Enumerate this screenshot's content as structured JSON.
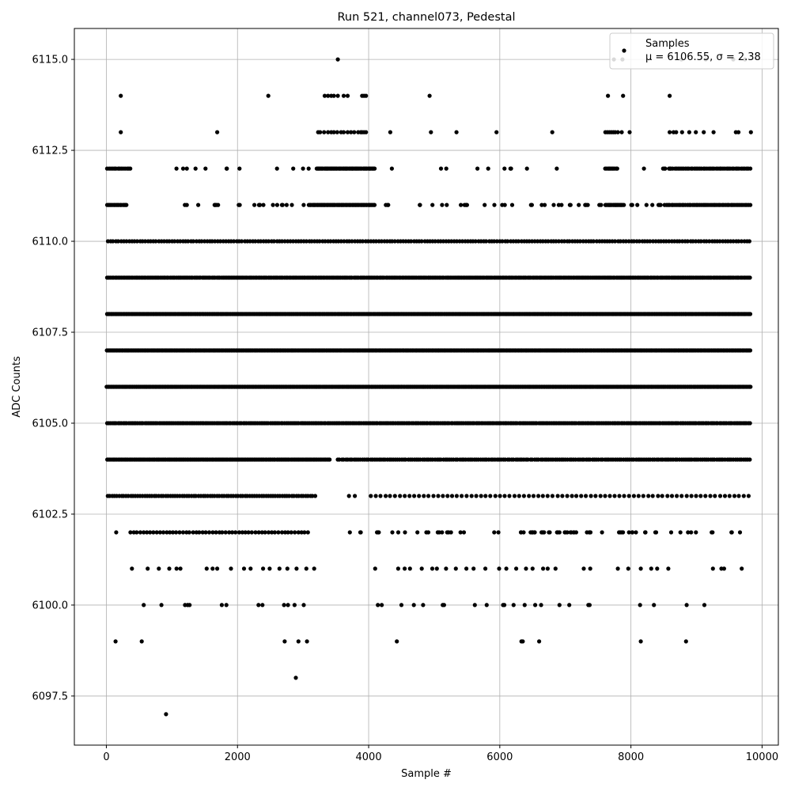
{
  "chart_data": {
    "type": "scatter",
    "title": "Run 521, channel073, Pedestal",
    "xlabel": "Sample #",
    "ylabel": "ADC Counts",
    "xlim": [
      -488,
      10248
    ],
    "ylim": [
      6096.15,
      6115.85
    ],
    "x_ticks": [
      0,
      2000,
      4000,
      6000,
      8000,
      10000
    ],
    "x_tick_labels": [
      "0",
      "2000",
      "4000",
      "6000",
      "8000",
      "10000"
    ],
    "y_ticks": [
      6097.5,
      6100.0,
      6102.5,
      6105.0,
      6107.5,
      6110.0,
      6112.5,
      6115.0
    ],
    "y_tick_labels": [
      "6097.5",
      "6100.0",
      "6102.5",
      "6105.0",
      "6107.5",
      "6110.0",
      "6112.5",
      "6115.0"
    ],
    "grid": true,
    "legend_position": "top-right",
    "marker_color": "#000000",
    "series": [
      {
        "name": "Samples",
        "stats_label": "μ = 6106.55, σ = 2.38",
        "n_samples": 9840,
        "levels": [
          {
            "y": 6097,
            "x": [
              910
            ]
          },
          {
            "y": 6098,
            "x": [
              2890
            ]
          },
          {
            "y": 6099,
            "x": [
              140,
              540,
              2720,
              2930,
              3060,
              4430,
              6330,
              6350,
              6600,
              8150,
              8840
            ]
          },
          {
            "y": 6100,
            "x": [
              570,
              840,
              1200,
              1240,
              1270,
              1760,
              1830,
              2320,
              2380,
              2710,
              2770,
              2870,
              3010,
              4140,
              4200,
              4500,
              4690,
              4830,
              5130,
              5150,
              5620,
              5800,
              6050,
              6070,
              6210,
              6380,
              6540,
              6630,
              6910,
              7060,
              7350,
              7370,
              8140,
              8350,
              8850,
              9120
            ]
          },
          {
            "y": 6101,
            "x": [
              390,
              630,
              800,
              960,
              1070,
              1130,
              1530,
              1620,
              1690,
              1900,
              2100,
              2200,
              2390,
              2490,
              2640,
              2760,
              2900,
              3050,
              3170,
              4100,
              4450,
              4550,
              4630,
              4810,
              4970,
              5040,
              5180,
              5330,
              5490,
              5600,
              5780,
              5990,
              6100,
              6250,
              6400,
              6500,
              6660,
              6730,
              6850,
              7280,
              7380,
              7800,
              7960,
              8150,
              8310,
              8400,
              8570,
              9250,
              9380,
              9420,
              9690
            ]
          },
          {
            "y": 6102,
            "x": [
              150
            ],
            "dense": [
              [
                340,
                3100,
                55
              ]
            ],
            "sparse": [
              [
                3600,
                6300,
                22
              ],
              [
                6300,
                7400,
                30
              ],
              [
                7400,
                9800,
                24
              ]
            ]
          },
          {
            "y": 6103,
            "x": [
              3700,
              3790
            ],
            "dense": [
              [
                0,
                3200,
                90
              ],
              [
                4000,
                9830,
                80
              ]
            ]
          },
          {
            "y": 6104,
            "dense": [
              [
                0,
                3420,
                160
              ],
              [
                3510,
                9830,
                200
              ]
            ]
          },
          {
            "y": 6105,
            "dense": [
              [
                0,
                9830,
                360
              ]
            ]
          },
          {
            "y": 6106,
            "dense": [
              [
                0,
                9830,
                640
              ]
            ]
          },
          {
            "y": 6107,
            "dense": [
              [
                0,
                9830,
                700
              ]
            ]
          },
          {
            "y": 6108,
            "dense": [
              [
                0,
                9830,
                650
              ]
            ]
          },
          {
            "y": 6109,
            "dense": [
              [
                0,
                9830,
                400
              ]
            ]
          },
          {
            "y": 6110,
            "dense": [
              [
                0,
                9830,
                240
              ]
            ]
          },
          {
            "y": 6111,
            "dense": [
              [
                0,
                320,
                16
              ],
              [
                3100,
                4100,
                60
              ],
              [
                7600,
                7900,
                18
              ],
              [
                8500,
                9830,
                50
              ]
            ],
            "sparse": [
              [
                1100,
                3100,
                22
              ],
              [
                4100,
                7600,
                32
              ],
              [
                7900,
                8500,
                8
              ]
            ]
          },
          {
            "y": 6112,
            "dense": [
              [
                0,
                380,
                14
              ],
              [
                3200,
                4100,
                55
              ],
              [
                7600,
                7800,
                10
              ],
              [
                8600,
                9830,
                45
              ]
            ],
            "sparse": [
              [
                1050,
                3150,
                12
              ],
              [
                4300,
                7600,
                10
              ],
              [
                7800,
                8600,
                6
              ]
            ]
          },
          {
            "y": 6113,
            "x": [
              220,
              1690,
              3230,
              3260,
              3320,
              3380,
              3430,
              3470,
              3520,
              3580,
              3620,
              3680,
              3730,
              3780,
              3840,
              3880,
              3900,
              3930,
              3960,
              4330,
              4950,
              5340,
              5950,
              6800,
              7610,
              7640,
              7670,
              7700,
              7730,
              7760,
              7800,
              7860,
              7980,
              8590,
              8650,
              8690,
              8780,
              8890,
              8990,
              9110,
              9260,
              9600,
              9640,
              9830
            ]
          },
          {
            "y": 6114,
            "x": [
              220,
              2470,
              3330,
              3380,
              3430,
              3470,
              3530,
              3620,
              3680,
              3900,
              3930,
              3960,
              4930,
              7650,
              7880,
              8590
            ]
          },
          {
            "y": 6115,
            "x": [
              3530,
              7740,
              7870,
              8770,
              9140,
              9560,
              9740
            ]
          }
        ]
      }
    ]
  }
}
